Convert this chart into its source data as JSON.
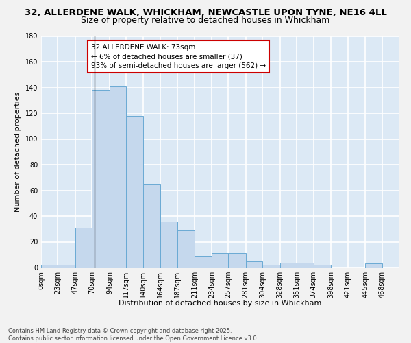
{
  "title1": "32, ALLERDENE WALK, WHICKHAM, NEWCASTLE UPON TYNE, NE16 4LL",
  "title2": "Size of property relative to detached houses in Whickham",
  "xlabel": "Distribution of detached houses by size in Whickham",
  "ylabel": "Number of detached properties",
  "bar_left_edges": [
    0,
    23,
    47,
    70,
    94,
    117,
    140,
    164,
    187,
    211,
    234,
    257,
    281,
    304,
    328,
    351,
    374,
    398,
    421,
    445
  ],
  "bar_widths": [
    23,
    24,
    23,
    24,
    23,
    23,
    24,
    23,
    24,
    23,
    23,
    24,
    23,
    24,
    23,
    23,
    24,
    23,
    24,
    23
  ],
  "bar_heights": [
    2,
    2,
    31,
    138,
    141,
    118,
    65,
    36,
    29,
    9,
    11,
    11,
    5,
    2,
    4,
    4,
    2,
    0,
    0,
    3
  ],
  "bar_color": "#c5d8ed",
  "bar_edge_color": "#6aaad4",
  "background_color": "#dce9f5",
  "grid_color": "#ffffff",
  "fig_background": "#f2f2f2",
  "vline_x": 73,
  "vline_color": "#000000",
  "annotation_line1": "32 ALLERDENE WALK: 73sqm",
  "annotation_line2": "← 6% of detached houses are smaller (37)",
  "annotation_line3": "93% of semi-detached houses are larger (562) →",
  "annotation_box_color": "#ffffff",
  "annotation_box_edge_color": "#cc0000",
  "ylim": [
    0,
    180
  ],
  "xlim_max": 491,
  "yticks": [
    0,
    20,
    40,
    60,
    80,
    100,
    120,
    140,
    160,
    180
  ],
  "xtick_labels": [
    "0sqm",
    "23sqm",
    "47sqm",
    "70sqm",
    "94sqm",
    "117sqm",
    "140sqm",
    "164sqm",
    "187sqm",
    "211sqm",
    "234sqm",
    "257sqm",
    "281sqm",
    "304sqm",
    "328sqm",
    "351sqm",
    "374sqm",
    "398sqm",
    "421sqm",
    "445sqm",
    "468sqm"
  ],
  "xtick_positions": [
    0,
    23,
    47,
    70,
    94,
    117,
    140,
    164,
    187,
    211,
    234,
    257,
    281,
    304,
    328,
    351,
    374,
    398,
    421,
    445,
    468
  ],
  "footer_text": "Contains HM Land Registry data © Crown copyright and database right 2025.\nContains public sector information licensed under the Open Government Licence v3.0.",
  "title_fontsize": 9.5,
  "subtitle_fontsize": 9,
  "axis_label_fontsize": 8,
  "tick_fontsize": 7,
  "annotation_fontsize": 7.5,
  "footer_fontsize": 6
}
